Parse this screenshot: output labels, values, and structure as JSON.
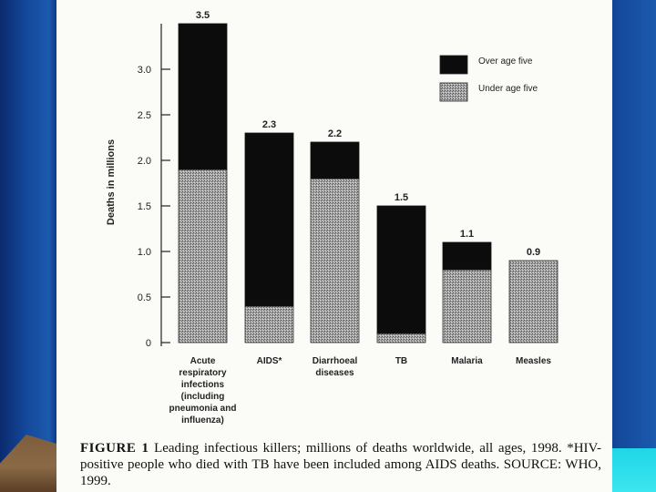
{
  "chart_data": {
    "type": "bar",
    "stacked": true,
    "ylabel": "Deaths in millions",
    "ylim": [
      0,
      3.5
    ],
    "yticks": [
      "0",
      "0.5",
      "1.0",
      "1.5",
      "2.0",
      "2.5",
      "3.0"
    ],
    "categories": [
      [
        "Acute",
        "respiratory",
        "infections",
        "(including",
        "pneumonia and",
        "influenza)"
      ],
      [
        "AIDS*"
      ],
      [
        "Diarrhoeal",
        "diseases"
      ],
      [
        "TB"
      ],
      [
        "Malaria"
      ],
      [
        "Measles"
      ]
    ],
    "totals_labels": [
      "3.5",
      "2.3",
      "2.2",
      "1.5",
      "1.1",
      "0.9"
    ],
    "series": [
      {
        "name": "Under age five",
        "color": "#8c8c8c",
        "values": [
          1.9,
          0.4,
          1.8,
          0.1,
          0.8,
          0.9
        ]
      },
      {
        "name": "Over age five",
        "color": "#0c0c0c",
        "values": [
          1.6,
          1.9,
          0.4,
          1.4,
          0.3,
          0.0
        ]
      }
    ],
    "legend": [
      {
        "name": "Over age five",
        "color": "#0c0c0c"
      },
      {
        "name": "Under age five",
        "color": "#8c8c8c"
      }
    ]
  },
  "caption": {
    "label": "FIGURE 1",
    "text": " Leading infectious killers; millions of deaths worldwide, all ages, 1998. *HIV-positive people who died with TB have been included among AIDS deaths. SOURCE: WHO, 1999."
  }
}
